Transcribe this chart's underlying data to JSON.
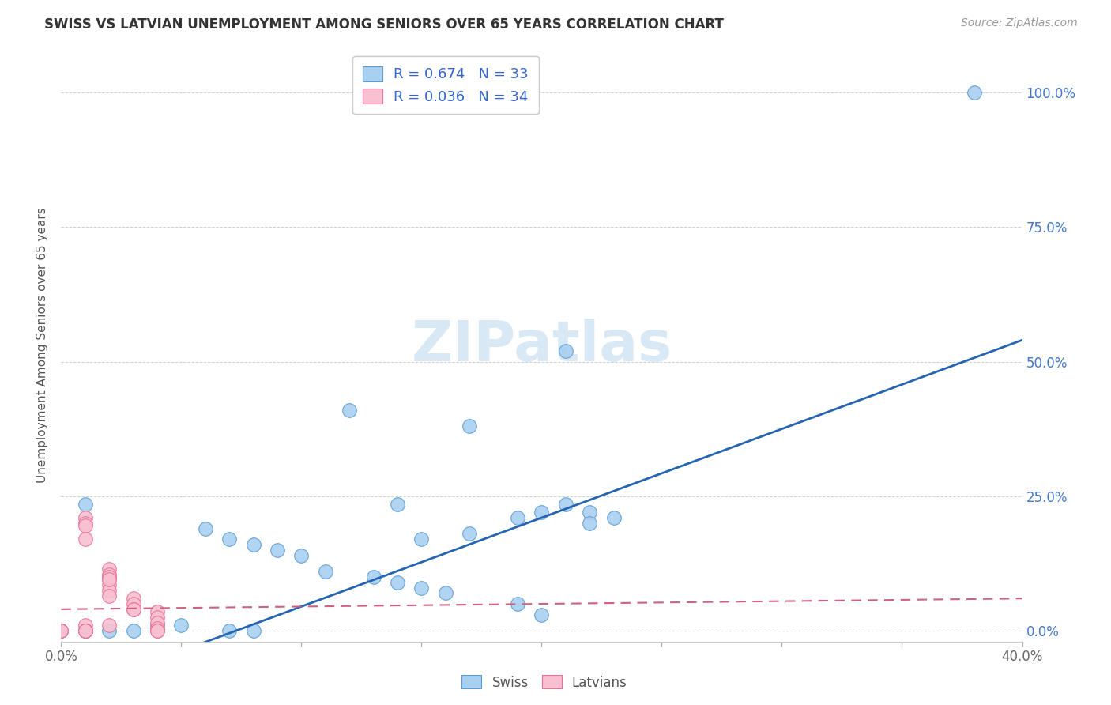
{
  "title": "SWISS VS LATVIAN UNEMPLOYMENT AMONG SENIORS OVER 65 YEARS CORRELATION CHART",
  "source": "Source: ZipAtlas.com",
  "ylabel": "Unemployment Among Seniors over 65 years",
  "xlim": [
    0.0,
    0.4
  ],
  "ylim": [
    -0.02,
    1.08
  ],
  "right_yticks": [
    0.0,
    0.25,
    0.5,
    0.75,
    1.0
  ],
  "right_yticklabels": [
    "0.0%",
    "25.0%",
    "50.0%",
    "75.0%",
    "100.0%"
  ],
  "xticks": [
    0.0,
    0.05,
    0.1,
    0.15,
    0.2,
    0.25,
    0.3,
    0.35,
    0.4
  ],
  "swiss_color": "#A8D0F0",
  "swiss_edge_color": "#5B9BD5",
  "latvian_color": "#F8C0D0",
  "latvian_edge_color": "#E87098",
  "swiss_line_color": "#2464B0",
  "latvian_line_color": "#D06080",
  "watermark_color": "#D8E8F5",
  "legend_swiss_label": "R = 0.674   N = 33",
  "legend_latvian_label": "R = 0.036   N = 34",
  "swiss_x": [
    0.38,
    0.21,
    0.12,
    0.17,
    0.14,
    0.21,
    0.23,
    0.19,
    0.22,
    0.22,
    0.2,
    0.16,
    0.15,
    0.14,
    0.13,
    0.11,
    0.1,
    0.09,
    0.08,
    0.07,
    0.06,
    0.05,
    0.04,
    0.03,
    0.02,
    0.01,
    0.01,
    0.07,
    0.08,
    0.15,
    0.19,
    0.17,
    0.2
  ],
  "swiss_y": [
    1.0,
    0.52,
    0.41,
    0.38,
    0.235,
    0.235,
    0.21,
    0.21,
    0.22,
    0.2,
    0.03,
    0.07,
    0.08,
    0.09,
    0.1,
    0.11,
    0.14,
    0.15,
    0.16,
    0.17,
    0.19,
    0.01,
    0.01,
    0.0,
    0.0,
    0.0,
    0.235,
    0.0,
    0.0,
    0.17,
    0.05,
    0.18,
    0.22
  ],
  "latvian_x": [
    0.01,
    0.01,
    0.01,
    0.01,
    0.02,
    0.02,
    0.02,
    0.02,
    0.02,
    0.02,
    0.02,
    0.01,
    0.01,
    0.01,
    0.01,
    0.01,
    0.01,
    0.02,
    0.02,
    0.03,
    0.03,
    0.03,
    0.03,
    0.04,
    0.04,
    0.04,
    0.04,
    0.04,
    0.04,
    0.0,
    0.0,
    0.0,
    0.0,
    0.0
  ],
  "latvian_y": [
    0.21,
    0.2,
    0.195,
    0.17,
    0.115,
    0.105,
    0.095,
    0.085,
    0.075,
    0.065,
    0.01,
    0.01,
    0.0,
    0.0,
    0.0,
    0.0,
    0.0,
    0.1,
    0.095,
    0.06,
    0.05,
    0.04,
    0.04,
    0.035,
    0.025,
    0.015,
    0.005,
    0.0,
    0.0,
    0.0,
    0.0,
    0.0,
    0.0,
    0.0
  ],
  "background_color": "#FFFFFF",
  "grid_color": "#CCCCCC",
  "swiss_reg_m": 1.65,
  "swiss_reg_b": -0.12,
  "latvian_reg_m": 0.05,
  "latvian_reg_b": 0.04
}
